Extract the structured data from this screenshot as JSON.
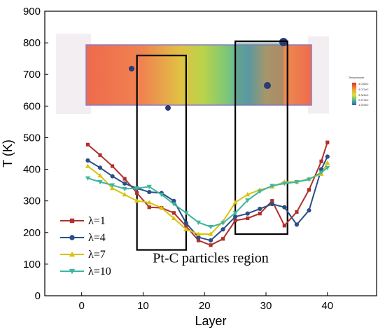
{
  "chart_data": {
    "type": "line",
    "xlabel": "Layer",
    "ylabel": "T (K)",
    "xlim": [
      -6,
      48
    ],
    "ylim": [
      0,
      900
    ],
    "x_ticks": [
      0,
      10,
      20,
      30,
      40
    ],
    "y_ticks": [
      0,
      100,
      200,
      300,
      400,
      500,
      600,
      700,
      800,
      900
    ],
    "grid": false,
    "legend_position": "bottom-left",
    "x": [
      1,
      3,
      5,
      7,
      9,
      11,
      13,
      15,
      17,
      19,
      21,
      23,
      25,
      27,
      29,
      31,
      33,
      35,
      37,
      39,
      40
    ],
    "series": [
      {
        "name": "λ=1",
        "color": "#b0302a",
        "marker": "square",
        "values": [
          478,
          445,
          410,
          370,
          325,
          280,
          278,
          262,
          220,
          175,
          160,
          180,
          238,
          245,
          260,
          300,
          222,
          265,
          335,
          425,
          485
        ]
      },
      {
        "name": "λ=4",
        "color": "#2b4f87",
        "marker": "circle",
        "values": [
          428,
          405,
          378,
          355,
          340,
          328,
          325,
          300,
          230,
          185,
          175,
          210,
          250,
          260,
          275,
          290,
          280,
          225,
          270,
          400,
          440
        ]
      },
      {
        "name": "λ=7",
        "color": "#d8c30f",
        "marker": "triangle-up",
        "values": [
          410,
          380,
          340,
          320,
          300,
          295,
          278,
          245,
          210,
          195,
          195,
          235,
          295,
          320,
          335,
          345,
          360,
          360,
          370,
          385,
          420
        ]
      },
      {
        "name": "λ=10",
        "color": "#3fb5a0",
        "marker": "triangle-down",
        "values": [
          372,
          360,
          350,
          338,
          340,
          345,
          320,
          290,
          262,
          232,
          218,
          230,
          262,
          302,
          330,
          348,
          355,
          360,
          368,
          390,
          405
        ]
      }
    ],
    "annotations": [
      {
        "text": "Pt-C particles region",
        "x": 21,
        "y": 105
      },
      {
        "text": "Temperature"
      },
      {
        "text": "4.030e2"
      },
      {
        "text": "4.071e2"
      },
      {
        "text": "3.322e2"
      },
      {
        "text": "2.573e2"
      },
      {
        "text": "1.920e2"
      }
    ],
    "highlight_regions": [
      {
        "x": [
          9,
          17
        ],
        "y": [
          145,
          760
        ]
      },
      {
        "x": [
          25,
          33.5
        ],
        "y": [
          195,
          805
        ]
      }
    ]
  }
}
